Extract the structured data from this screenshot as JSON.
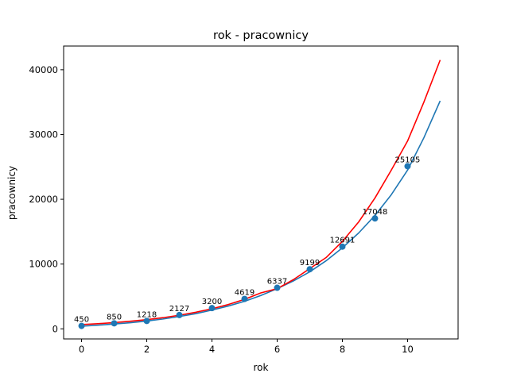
{
  "chart_data": {
    "type": "scatter",
    "title": "rok - pracownicy",
    "xlabel": "rok",
    "ylabel": "pracownicy",
    "xlim": [
      -0.55,
      11.55
    ],
    "ylim": [
      -1560,
      43660
    ],
    "xticks": [
      0,
      2,
      4,
      6,
      8,
      10
    ],
    "yticks": [
      0,
      10000,
      20000,
      30000,
      40000
    ],
    "xtick_labels": [
      "0",
      "2",
      "4",
      "6",
      "8",
      "10"
    ],
    "ytick_labels": [
      "0",
      "10000",
      "20000",
      "30000",
      "40000"
    ],
    "grid": false,
    "colors": {
      "points": "#1f77b4",
      "fit_blue": "#1f77b4",
      "fit_red": "#ff0000"
    },
    "points": {
      "x": [
        0,
        1,
        2,
        3,
        4,
        5,
        6,
        7,
        8,
        9,
        10
      ],
      "y": [
        450,
        850,
        1218,
        2127,
        3200,
        4619,
        6337,
        9199,
        12691,
        17048,
        25105
      ],
      "labels": [
        "450",
        "850",
        "1218",
        "2127",
        "3200",
        "4619",
        "6337",
        "9199",
        "12691",
        "17048",
        "25105"
      ]
    },
    "curves": [
      {
        "color": "#1f77b4",
        "x": [
          0,
          0.5,
          1,
          1.5,
          2,
          2.5,
          3,
          3.5,
          4,
          4.5,
          5,
          5.5,
          6,
          6.5,
          7,
          7.5,
          8,
          8.5,
          9,
          9.5,
          10,
          10.5,
          11
        ],
        "y": [
          400,
          560,
          740,
          950,
          1200,
          1520,
          1900,
          2340,
          2900,
          3520,
          4250,
          5150,
          6200,
          7400,
          8800,
          10500,
          12500,
          14800,
          17500,
          20700,
          24500,
          29500,
          35200
        ]
      },
      {
        "color": "#ff0000",
        "x": [
          0,
          0.5,
          1,
          1.5,
          2,
          2.5,
          3,
          3.5,
          4,
          4.5,
          5,
          5.5,
          6,
          6.5,
          7,
          7.5,
          8,
          8.5,
          9,
          9.5,
          10,
          10.5,
          11
        ],
        "y": [
          650,
          790,
          960,
          1170,
          1420,
          1720,
          2100,
          2550,
          3100,
          3750,
          4550,
          5550,
          6200,
          7600,
          9300,
          11000,
          13500,
          16500,
          20200,
          24500,
          29000,
          35000,
          41500
        ]
      }
    ]
  }
}
